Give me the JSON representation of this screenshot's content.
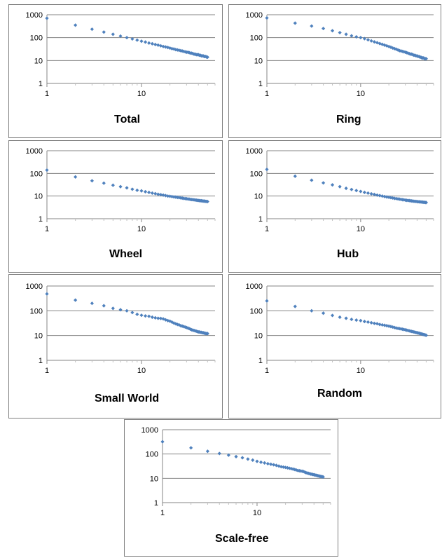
{
  "chart_data": [
    {
      "type": "scatter",
      "title": "Total",
      "x_scale": "log",
      "y_scale": "log",
      "xlim": [
        1,
        60
      ],
      "ylim": [
        1,
        1000
      ],
      "y_ticks": [
        "1",
        "10",
        "100",
        "1000"
      ],
      "x_ticks": [
        "1",
        "10"
      ],
      "grid": "horizontal",
      "marker_color": "#4F81BD",
      "x": [
        1,
        2,
        3,
        4,
        5,
        6,
        7,
        8,
        9,
        10,
        11,
        12,
        13,
        14,
        15,
        16,
        17,
        18,
        19,
        20,
        21,
        22,
        23,
        24,
        25,
        26,
        27,
        28,
        29,
        30,
        31,
        32,
        33,
        34,
        35,
        36,
        37,
        38,
        39,
        40,
        41,
        42,
        43,
        44,
        45,
        46,
        47,
        48,
        49,
        50
      ],
      "y": [
        700,
        350,
        233,
        175,
        140,
        117,
        100,
        88,
        78,
        70,
        64,
        58,
        54,
        50,
        47,
        44,
        41,
        39,
        37,
        35,
        33,
        32,
        30,
        29,
        28,
        27,
        26,
        25,
        24,
        23,
        23,
        22,
        21,
        21,
        20,
        19,
        19,
        18,
        18,
        18,
        17,
        17,
        16,
        16,
        16,
        15,
        15,
        15,
        14,
        14
      ]
    },
    {
      "type": "scatter",
      "title": "Ring",
      "x_scale": "log",
      "y_scale": "log",
      "xlim": [
        1,
        60
      ],
      "ylim": [
        1,
        1000
      ],
      "y_ticks": [
        "1",
        "10",
        "100",
        "1000"
      ],
      "x_ticks": [
        "1",
        "10"
      ],
      "grid": "horizontal",
      "marker_color": "#4F81BD",
      "x": [
        1,
        2,
        3,
        4,
        5,
        6,
        7,
        8,
        9,
        10,
        11,
        12,
        13,
        14,
        15,
        16,
        17,
        18,
        19,
        20,
        21,
        22,
        23,
        24,
        25,
        26,
        27,
        28,
        29,
        30,
        31,
        32,
        33,
        34,
        35,
        36,
        37,
        38,
        39,
        40,
        41,
        42,
        43,
        44,
        45,
        46,
        47,
        48,
        49,
        50
      ],
      "y": [
        720,
        430,
        320,
        250,
        200,
        165,
        140,
        120,
        108,
        100,
        90,
        80,
        72,
        65,
        60,
        55,
        51,
        47,
        44,
        41,
        38,
        35,
        33,
        31,
        29,
        27,
        26,
        25,
        24,
        23,
        22,
        21,
        20,
        19,
        19,
        18,
        17,
        17,
        16,
        16,
        15,
        15,
        14,
        14,
        13,
        13,
        13,
        12,
        12,
        12
      ]
    },
    {
      "type": "scatter",
      "title": "Wheel",
      "x_scale": "log",
      "y_scale": "log",
      "xlim": [
        1,
        60
      ],
      "ylim": [
        1,
        1000
      ],
      "y_ticks": [
        "1",
        "10",
        "100",
        "1000"
      ],
      "x_ticks": [
        "1",
        "10"
      ],
      "grid": "horizontal",
      "marker_color": "#4F81BD",
      "x": [
        1,
        2,
        3,
        4,
        5,
        6,
        7,
        8,
        9,
        10,
        11,
        12,
        13,
        14,
        15,
        16,
        17,
        18,
        19,
        20,
        21,
        22,
        23,
        24,
        25,
        26,
        27,
        28,
        29,
        30,
        31,
        32,
        33,
        34,
        35,
        36,
        37,
        38,
        39,
        40,
        41,
        42,
        43,
        44,
        45,
        46,
        47,
        48,
        49,
        50
      ],
      "y": [
        140,
        70,
        47,
        37,
        30,
        26,
        23,
        20,
        18,
        17,
        15.5,
        14.5,
        13.5,
        12.8,
        12,
        11.5,
        11,
        10.5,
        10,
        9.8,
        9.5,
        9.2,
        9,
        8.7,
        8.5,
        8.3,
        8.1,
        7.9,
        7.7,
        7.6,
        7.4,
        7.3,
        7.1,
        7,
        6.9,
        6.8,
        6.7,
        6.6,
        6.5,
        6.4,
        6.3,
        6.2,
        6.2,
        6.1,
        6,
        6,
        5.9,
        5.8,
        5.8,
        5.7
      ]
    },
    {
      "type": "scatter",
      "title": "Hub",
      "x_scale": "log",
      "y_scale": "log",
      "xlim": [
        1,
        60
      ],
      "ylim": [
        1,
        1000
      ],
      "y_ticks": [
        "1",
        "10",
        "100",
        "1000"
      ],
      "x_ticks": [
        "1",
        "10"
      ],
      "grid": "horizontal",
      "marker_color": "#4F81BD",
      "x": [
        1,
        2,
        3,
        4,
        5,
        6,
        7,
        8,
        9,
        10,
        11,
        12,
        13,
        14,
        15,
        16,
        17,
        18,
        19,
        20,
        21,
        22,
        23,
        24,
        25,
        26,
        27,
        28,
        29,
        30,
        31,
        32,
        33,
        34,
        35,
        36,
        37,
        38,
        39,
        40,
        41,
        42,
        43,
        44,
        45,
        46,
        47,
        48,
        49,
        50
      ],
      "y": [
        150,
        75,
        50,
        38,
        31,
        26,
        22,
        19.5,
        17.5,
        16,
        14.5,
        13.5,
        12.5,
        11.8,
        11,
        10.5,
        10,
        9.5,
        9.1,
        8.8,
        8.5,
        8.2,
        7.9,
        7.7,
        7.5,
        7.3,
        7.1,
        6.9,
        6.8,
        6.6,
        6.5,
        6.4,
        6.3,
        6.2,
        6.1,
        6,
        5.9,
        5.8,
        5.8,
        5.7,
        5.6,
        5.6,
        5.5,
        5.5,
        5.4,
        5.4,
        5.3,
        5.3,
        5.2,
        5.2
      ]
    },
    {
      "type": "scatter",
      "title": "Small World",
      "x_scale": "log",
      "y_scale": "log",
      "xlim": [
        1,
        60
      ],
      "ylim": [
        1,
        1000
      ],
      "y_ticks": [
        "1",
        "10",
        "100",
        "1000"
      ],
      "x_ticks": [
        "1",
        "10"
      ],
      "grid": "horizontal",
      "marker_color": "#4F81BD",
      "x": [
        1,
        2,
        3,
        4,
        5,
        6,
        7,
        8,
        9,
        10,
        11,
        12,
        13,
        14,
        15,
        16,
        17,
        18,
        19,
        20,
        21,
        22,
        23,
        24,
        25,
        26,
        27,
        28,
        29,
        30,
        31,
        32,
        33,
        34,
        35,
        36,
        37,
        38,
        39,
        40,
        41,
        42,
        43,
        44,
        45,
        46,
        47,
        48,
        49,
        50
      ],
      "y": [
        480,
        270,
        200,
        160,
        125,
        110,
        100,
        85,
        72,
        66,
        62,
        60,
        55,
        52,
        50,
        49,
        47,
        43,
        40,
        38,
        35,
        32,
        30,
        28,
        27,
        25,
        24,
        23,
        22,
        21,
        20,
        19,
        18,
        17,
        16.5,
        16,
        15.5,
        15,
        14.5,
        14,
        14,
        13.5,
        13.5,
        13,
        13,
        12.5,
        12.5,
        12,
        12,
        12
      ]
    },
    {
      "type": "scatter",
      "title": "Random",
      "x_scale": "log",
      "y_scale": "log",
      "xlim": [
        1,
        60
      ],
      "ylim": [
        1,
        1000
      ],
      "y_ticks": [
        "1",
        "10",
        "100",
        "1000"
      ],
      "x_ticks": [
        "1",
        "10"
      ],
      "grid": "horizontal",
      "marker_color": "#4F81BD",
      "x": [
        1,
        2,
        3,
        4,
        5,
        6,
        7,
        8,
        9,
        10,
        11,
        12,
        13,
        14,
        15,
        16,
        17,
        18,
        19,
        20,
        21,
        22,
        23,
        24,
        25,
        26,
        27,
        28,
        29,
        30,
        31,
        32,
        33,
        34,
        35,
        36,
        37,
        38,
        39,
        40,
        41,
        42,
        43,
        44,
        45,
        46,
        47,
        48,
        49,
        50
      ],
      "y": [
        250,
        150,
        100,
        80,
        65,
        55,
        50,
        45,
        42,
        40,
        37,
        35,
        33,
        31,
        30,
        28,
        27,
        26,
        25,
        24,
        23,
        22,
        21,
        20,
        19.5,
        19,
        18.5,
        18,
        17.5,
        17,
        16.5,
        16,
        15.5,
        15,
        14.7,
        14.3,
        14,
        13.6,
        13.3,
        13,
        12.7,
        12.4,
        12.1,
        11.8,
        11.5,
        11.2,
        11,
        10.8,
        10.5,
        10.3
      ]
    },
    {
      "type": "scatter",
      "title": "Scale-free",
      "x_scale": "log",
      "y_scale": "log",
      "xlim": [
        1,
        60
      ],
      "ylim": [
        1,
        1000
      ],
      "y_ticks": [
        "1",
        "10",
        "100",
        "1000"
      ],
      "x_ticks": [
        "1",
        "10"
      ],
      "grid": "horizontal",
      "marker_color": "#4F81BD",
      "x": [
        1,
        2,
        3,
        4,
        5,
        6,
        7,
        8,
        9,
        10,
        11,
        12,
        13,
        14,
        15,
        16,
        17,
        18,
        19,
        20,
        21,
        22,
        23,
        24,
        25,
        26,
        27,
        28,
        29,
        30,
        31,
        32,
        33,
        34,
        35,
        36,
        37,
        38,
        39,
        40,
        41,
        42,
        43,
        44,
        45,
        46,
        47,
        48,
        49,
        50
      ],
      "y": [
        320,
        180,
        130,
        105,
        90,
        78,
        70,
        62,
        56,
        50,
        46,
        43,
        40,
        38,
        36,
        34,
        32,
        30,
        29,
        28,
        27,
        26,
        25,
        24,
        23,
        22,
        21,
        20.5,
        20,
        19.5,
        19,
        18,
        17,
        16.5,
        16,
        15.5,
        15,
        14.7,
        14.3,
        14,
        13.7,
        13.4,
        13.1,
        12.8,
        12.5,
        12.2,
        12,
        11.8,
        11.6,
        11.4
      ]
    }
  ]
}
